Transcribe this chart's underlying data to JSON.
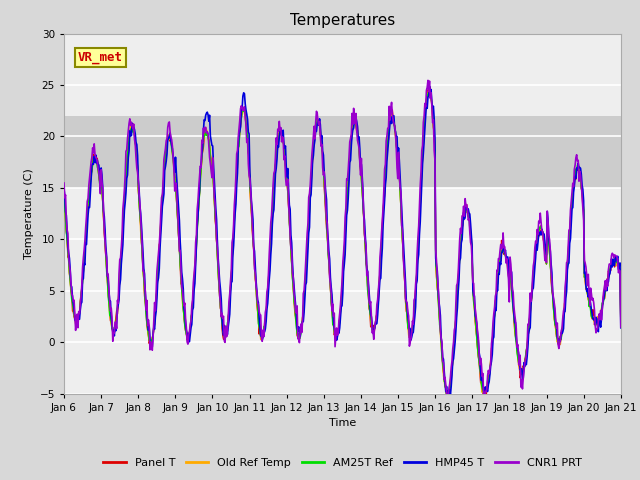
{
  "title": "Temperatures",
  "xlabel": "Time",
  "ylabel": "Temperature (C)",
  "ylim": [
    -5,
    30
  ],
  "xlim_days": [
    0,
    15
  ],
  "tick_labels": [
    "Jan 6",
    "Jan 7",
    "Jan 8",
    "Jan 9",
    "Jan 10",
    "Jan 11",
    "Jan 12",
    "Jan 13",
    "Jan 14",
    "Jan 15",
    "Jan 16",
    "Jan 17",
    "Jan 18",
    "Jan 19",
    "Jan 20",
    "Jan 21"
  ],
  "series_colors": [
    "#dd0000",
    "#ffaa00",
    "#00dd00",
    "#0000dd",
    "#9900cc"
  ],
  "series_labels": [
    "Panel T",
    "Old Ref Temp",
    "AM25T Ref",
    "HMP45 T",
    "CNR1 PRT"
  ],
  "series_lw": [
    1.0,
    1.0,
    1.0,
    1.2,
    1.2
  ],
  "figure_bg": "#d8d8d8",
  "plot_bg": "#eeeeee",
  "shaded_band": [
    15,
    22
  ],
  "shaded_color": "#cccccc",
  "grid_color": "#ffffff",
  "annotation_text": "VR_met",
  "annotation_fg": "#cc0000",
  "annotation_bg": "#ffff99",
  "annotation_border": "#888800",
  "yticks": [
    -5,
    0,
    5,
    10,
    15,
    20,
    25,
    30
  ],
  "title_fontsize": 11,
  "legend_fontsize": 8,
  "axis_fontsize": 8,
  "tick_fontsize": 7.5
}
